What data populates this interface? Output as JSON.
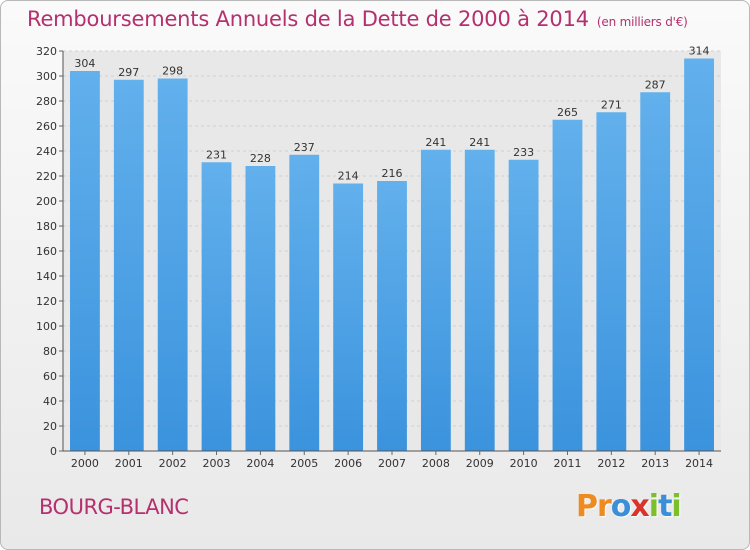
{
  "title": "Remboursements Annuels de la Dette de 2000 à 2014",
  "subtitle": "(en milliers d'€)",
  "place": "BOURG-BLANC",
  "logo": {
    "letters": [
      "P",
      "r",
      "o",
      "x",
      "i",
      "t",
      "i"
    ],
    "colors": [
      "#ee8a1f",
      "#ee8a1f",
      "#3a8fd8",
      "#d8342b",
      "#7bbf2b",
      "#3a8fd8",
      "#7bbf2b"
    ]
  },
  "chart_data": {
    "type": "bar",
    "categories": [
      "2000",
      "2001",
      "2002",
      "2003",
      "2004",
      "2005",
      "2006",
      "2007",
      "2008",
      "2009",
      "2010",
      "2011",
      "2012",
      "2013",
      "2014"
    ],
    "values": [
      304,
      297,
      298,
      231,
      228,
      237,
      214,
      216,
      241,
      241,
      233,
      265,
      271,
      287,
      314
    ],
    "ylim": [
      0,
      320
    ],
    "yticks": [
      0,
      20,
      40,
      60,
      80,
      100,
      120,
      140,
      160,
      180,
      200,
      220,
      240,
      260,
      280,
      300,
      320
    ],
    "grid": true,
    "bar_color": "#3b93dd",
    "bar_color_light": "#62b0ec"
  }
}
